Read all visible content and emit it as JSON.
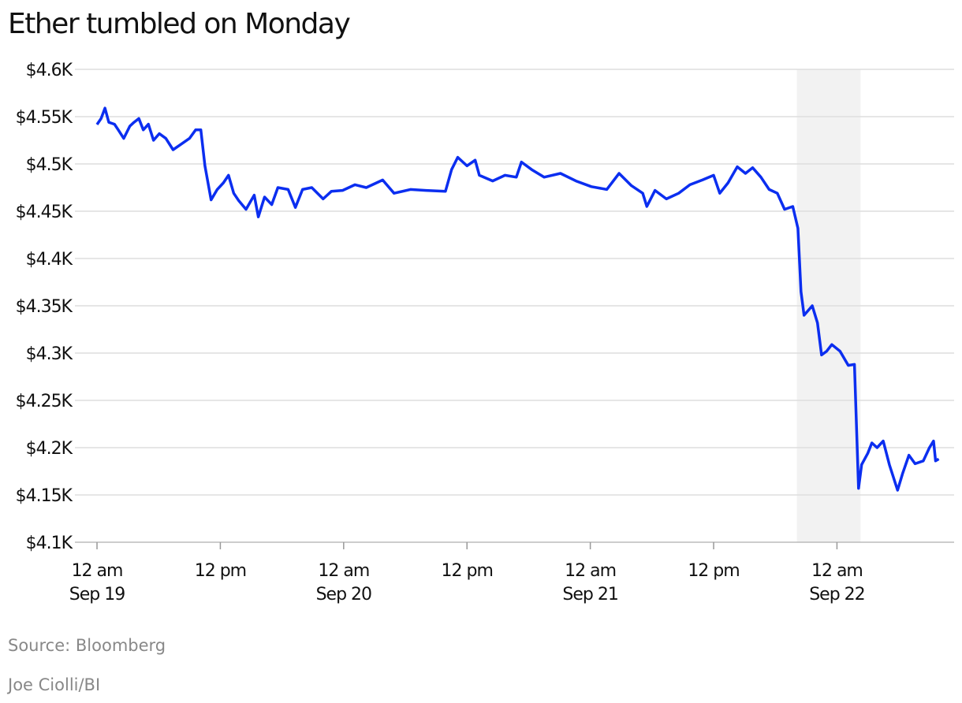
{
  "chart_data": {
    "type": "line",
    "title": "Ether tumbled on Monday",
    "source": "Source: Bloomberg",
    "credit": "Joe Ciolli/BI",
    "xlim": [
      -2.15,
      83.4
    ],
    "ylim": [
      4100,
      4600
    ],
    "xticks": [
      {
        "value": 0,
        "label": [
          "12 am",
          "Sep 19"
        ]
      },
      {
        "value": 12,
        "label": [
          "12 pm"
        ]
      },
      {
        "value": 24,
        "label": [
          "12 am",
          "Sep 20"
        ]
      },
      {
        "value": 36,
        "label": [
          "12 pm"
        ]
      },
      {
        "value": 48,
        "label": [
          "12 am",
          "Sep 21"
        ]
      },
      {
        "value": 60,
        "label": [
          "12 pm"
        ]
      },
      {
        "value": 72,
        "label": [
          "12 am",
          "Sep 22"
        ]
      }
    ],
    "yticks": [
      {
        "value": 4100,
        "label": "$4.1K"
      },
      {
        "value": 4150,
        "label": "$4.15K"
      },
      {
        "value": 4200,
        "label": "$4.2K"
      },
      {
        "value": 4250,
        "label": "$4.25K"
      },
      {
        "value": 4300,
        "label": "$4.3K"
      },
      {
        "value": 4350,
        "label": "$4.35K"
      },
      {
        "value": 4400,
        "label": "$4.4K"
      },
      {
        "value": 4450,
        "label": "$4.45K"
      },
      {
        "value": 4500,
        "label": "$4.5K"
      },
      {
        "value": 4550,
        "label": "$4.55K"
      },
      {
        "value": 4600,
        "label": "$4.6K"
      }
    ],
    "grid": true,
    "shaded_region": [
      68.1,
      74.3
    ],
    "series": [
      {
        "name": "Ether",
        "color": "#0b2ef0",
        "x": [
          0,
          0.4,
          0.77,
          1.15,
          1.7,
          2.07,
          2.6,
          3.2,
          3.6,
          4.07,
          4.5,
          5.0,
          5.5,
          6.06,
          6.7,
          7.4,
          8.2,
          9.0,
          9.6,
          10.1,
          10.5,
          11.1,
          11.7,
          12.3,
          12.8,
          13.3,
          13.8,
          14.5,
          15.3,
          15.7,
          16.3,
          17.0,
          17.6,
          18.6,
          19.3,
          20.0,
          20.9,
          22.0,
          22.8,
          23.9,
          25.1,
          26.2,
          27.8,
          28.9,
          30.5,
          32.0,
          33.9,
          34.5,
          35.1,
          36.0,
          36.8,
          37.2,
          38.5,
          39.7,
          40.8,
          41.3,
          42.3,
          43.5,
          45.1,
          46.6,
          48.1,
          49.6,
          50.8,
          52.0,
          53.1,
          53.5,
          54.3,
          55.4,
          56.6,
          57.7,
          58.9,
          60.0,
          60.6,
          61.4,
          62.3,
          63.1,
          63.8,
          64.6,
          65.4,
          66.2,
          66.9,
          67.7,
          68.2,
          68.5,
          68.8,
          69.6,
          70.1,
          70.5,
          71.0,
          71.5,
          72.3,
          73.1,
          73.7,
          74.1,
          74.4,
          75.0,
          75.4,
          75.9,
          76.5,
          77.1,
          77.9,
          78.4,
          79.0,
          79.6,
          80.4,
          81.0,
          81.4,
          81.6,
          81.9
        ],
        "values": [
          4541.7,
          4548,
          4559,
          4544,
          4542,
          4536,
          4527,
          4540,
          4544,
          4548,
          4536,
          4542,
          4525,
          4532,
          4527,
          4515,
          4521,
          4527,
          4536,
          4536,
          4498,
          4462,
          4473,
          4480,
          4488,
          4469,
          4461,
          4452,
          4467,
          4444,
          4465,
          4457,
          4475,
          4473,
          4454,
          4473,
          4475,
          4463,
          4471,
          4472,
          4478,
          4475,
          4483,
          4469,
          4473,
          4472,
          4471,
          4494,
          4507,
          4498,
          4504,
          4488,
          4482,
          4488,
          4486,
          4502,
          4494,
          4486,
          4490,
          4482,
          4476,
          4473,
          4490,
          4477,
          4469,
          4455,
          4472,
          4463,
          4469,
          4478,
          4483,
          4488,
          4469,
          4480,
          4497,
          4490,
          4496,
          4486,
          4473,
          4469,
          4452,
          4455,
          4432,
          4365,
          4340,
          4350,
          4332,
          4298,
          4302,
          4309,
          4302,
          4287,
          4288,
          4157,
          4182,
          4194,
          4205,
          4200,
          4207,
          4182,
          4155,
          4173,
          4192,
          4183,
          4186,
          4200,
          4207,
          4186,
          4188
        ]
      }
    ]
  }
}
